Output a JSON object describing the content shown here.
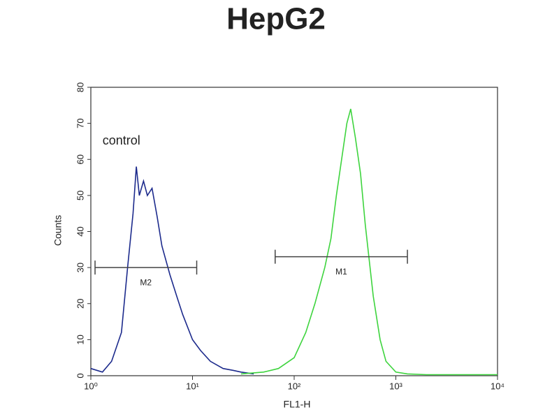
{
  "chart_data": {
    "type": "line",
    "title": "HepG2",
    "xlabel": "FL1-H",
    "ylabel": "Counts",
    "xscale": "log",
    "xlim": [
      1,
      10000
    ],
    "ylim": [
      0,
      80
    ],
    "xticks": [
      {
        "value": 1,
        "label": "10⁰"
      },
      {
        "value": 10,
        "label": "10¹"
      },
      {
        "value": 100,
        "label": "10²"
      },
      {
        "value": 1000,
        "label": "10³"
      },
      {
        "value": 10000,
        "label": "10⁴"
      }
    ],
    "yticks": [
      0,
      10,
      20,
      30,
      40,
      50,
      60,
      70,
      80
    ],
    "grid": false,
    "series": [
      {
        "name": "control",
        "color": "#1c2a8c",
        "x": [
          1,
          1.3,
          1.6,
          2,
          2.3,
          2.6,
          2.8,
          3,
          3.3,
          3.6,
          4,
          4.5,
          5,
          6,
          7,
          8,
          10,
          12,
          15,
          20,
          25,
          30,
          40
        ],
        "values": [
          2,
          1,
          4,
          12,
          30,
          45,
          58,
          50,
          54,
          50,
          52,
          44,
          36,
          28,
          22,
          17,
          10,
          7,
          4,
          2,
          1.5,
          1,
          0.5
        ]
      },
      {
        "name": "HepG2",
        "color": "#3ed43e",
        "x": [
          30,
          50,
          70,
          100,
          130,
          160,
          200,
          230,
          260,
          300,
          330,
          360,
          400,
          450,
          500,
          600,
          700,
          800,
          1000,
          1300,
          2000,
          5000,
          10000
        ],
        "values": [
          0.5,
          1,
          2,
          5,
          12,
          20,
          30,
          38,
          50,
          62,
          70,
          74,
          66,
          56,
          42,
          22,
          10,
          4,
          1,
          0.5,
          0.3,
          0.3,
          0.3
        ]
      }
    ],
    "annotations": [
      {
        "label": "control",
        "x": 2,
        "y": 65
      },
      {
        "label": "M2",
        "x": [
          1.1,
          11
        ],
        "y": 30
      },
      {
        "label": "M1",
        "x": [
          65,
          1300
        ],
        "y": 33
      }
    ]
  }
}
